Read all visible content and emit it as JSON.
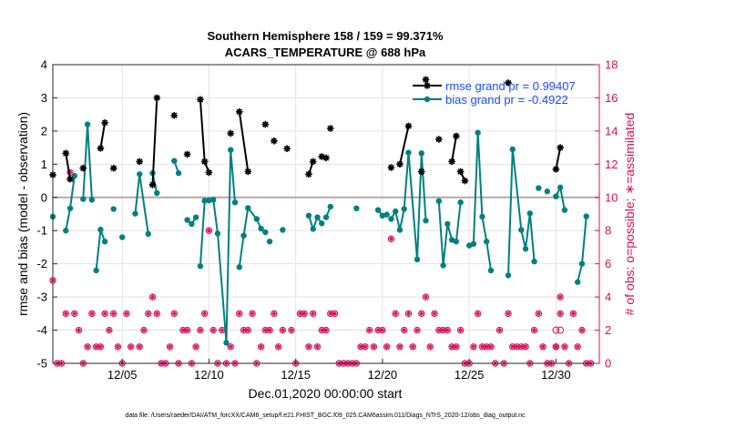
{
  "chart_data": {
    "type": "line",
    "title": "Southern Hemisphere 158 / 159 = 99.371%",
    "subtitle": "ACARS_TEMPERATURE @ 688 hPa",
    "xlabel": "Dec.01,2020 00:00:00 start",
    "ylabel": "rmse and bias (model - observation)",
    "y2label": "# of obs: o=possible; ∗=assimilated",
    "footnote": "data file: /Users/raeder/DAI/ATM_forcXX/CAM6_setup/f.e21.FHIST_BGC.f09_025.CAM6assim.011/Diags_NTrS_2020-12/obs_diag_output.nc",
    "xlim": [
      0.5,
      32.0
    ],
    "ylim": [
      -5,
      4
    ],
    "y2lim": [
      0,
      18
    ],
    "x_ticks": [
      4.5,
      9.5,
      14.5,
      19.5,
      24.5,
      29.5
    ],
    "x_tick_labels": [
      "12/05",
      "12/10",
      "12/15",
      "12/20",
      "12/25",
      "12/30"
    ],
    "y_ticks": [
      -5,
      -4,
      -3,
      -2,
      -1,
      0,
      1,
      2,
      3,
      4
    ],
    "y2_ticks": [
      0,
      2,
      4,
      6,
      8,
      10,
      12,
      14,
      16,
      18
    ],
    "grid": true,
    "legend_position": "top-right",
    "colors": {
      "rmse": "#000000",
      "bias": "#008080",
      "obs": "#d6105a",
      "zero_line": "#b9a5a9",
      "legend_text": "#1a4cff"
    },
    "series": [
      {
        "name": "rmse grand pr = 0.99407",
        "key": "rmse",
        "marker": "star",
        "segments": [
          [
            [
              0.5,
              0.68
            ]
          ],
          [
            [
              1.25,
              1.33
            ],
            [
              1.5,
              0.55
            ]
          ],
          [
            [
              2.25,
              0.88
            ]
          ],
          [
            [
              3.25,
              1.48
            ],
            [
              3.5,
              2.25
            ]
          ],
          [
            [
              4.0,
              0.88
            ]
          ],
          [
            [
              5.5,
              1.08
            ]
          ],
          [
            [
              6.25,
              0.38
            ],
            [
              6.5,
              3.0
            ]
          ],
          [
            [
              7.5,
              2.47
            ]
          ],
          [
            [
              8.25,
              1.3
            ]
          ],
          [
            [
              9.0,
              2.95
            ],
            [
              9.25,
              1.08
            ],
            [
              9.5,
              0.75
            ]
          ],
          [
            [
              10.75,
              1.93
            ]
          ],
          [
            [
              11.25,
              2.58
            ],
            [
              11.75,
              0.78
            ]
          ],
          [
            [
              12.75,
              2.2
            ]
          ],
          [
            [
              13.25,
              1.7
            ]
          ],
          [
            [
              14.0,
              1.47
            ]
          ],
          [
            [
              15.25,
              0.7
            ],
            [
              15.5,
              1.08
            ]
          ],
          [
            [
              16.0,
              1.23
            ],
            [
              16.25,
              1.19
            ]
          ],
          [
            [
              16.5,
              2.08
            ]
          ],
          [
            [
              20.0,
              0.9
            ]
          ],
          [
            [
              20.5,
              1.0
            ],
            [
              21.0,
              2.15
            ]
          ],
          [
            [
              21.75,
              0.78
            ]
          ],
          [
            [
              22.0,
              3.55
            ]
          ],
          [
            [
              22.75,
              1.75
            ]
          ],
          [
            [
              23.5,
              1.08
            ],
            [
              23.75,
              1.85
            ]
          ],
          [
            [
              24.0,
              0.78
            ],
            [
              24.25,
              0.5
            ]
          ],
          [
            [
              26.75,
              3.45
            ]
          ],
          [
            [
              29.5,
              0.85
            ],
            [
              29.75,
              1.5
            ]
          ]
        ]
      },
      {
        "name": "bias grand pr = -0.4922",
        "key": "bias",
        "marker": "circle",
        "segments": [
          [
            [
              0.5,
              -0.58
            ]
          ],
          [
            [
              1.25,
              -1.0
            ],
            [
              1.5,
              -0.33
            ],
            [
              1.75,
              0.65
            ]
          ],
          [
            [
              2.25,
              -0.05
            ],
            [
              2.5,
              2.2
            ],
            [
              2.75,
              -0.07
            ]
          ],
          [
            [
              3.0,
              -2.2
            ],
            [
              3.25,
              -0.97
            ],
            [
              3.5,
              -1.33
            ]
          ],
          [
            [
              4.0,
              -0.35
            ]
          ],
          [
            [
              4.5,
              -1.2
            ]
          ],
          [
            [
              5.25,
              -0.49
            ],
            [
              5.5,
              0.7
            ],
            [
              6.0,
              -1.1
            ]
          ],
          [
            [
              6.25,
              0.73
            ],
            [
              6.5,
              0.13
            ]
          ],
          [
            [
              7.5,
              1.1
            ],
            [
              7.75,
              0.73
            ]
          ],
          [
            [
              8.25,
              -0.68
            ],
            [
              8.5,
              -0.8
            ],
            [
              8.75,
              -0.6
            ]
          ],
          [
            [
              9.0,
              -2.07
            ],
            [
              9.25,
              -0.1
            ],
            [
              9.5,
              -0.09
            ],
            [
              9.75,
              -0.07
            ],
            [
              10.0,
              -1.09
            ],
            [
              10.5,
              -4.38
            ],
            [
              10.75,
              1.43
            ],
            [
              11.0,
              -0.15
            ]
          ],
          [
            [
              11.25,
              -2.1
            ],
            [
              11.5,
              -1.15
            ],
            [
              11.75,
              -0.32
            ],
            [
              12.25,
              -0.65
            ],
            [
              12.5,
              -0.94
            ],
            [
              12.75,
              -1.05
            ]
          ],
          [
            [
              13.0,
              -1.33
            ]
          ],
          [
            [
              13.75,
              -0.98
            ]
          ],
          [
            [
              15.25,
              -0.55
            ],
            [
              15.5,
              -0.95
            ],
            [
              15.75,
              -0.6
            ],
            [
              16.0,
              -0.78
            ]
          ],
          [
            [
              16.25,
              -0.6
            ],
            [
              16.5,
              -0.28
            ]
          ],
          [
            [
              18.0,
              -0.33
            ]
          ],
          [
            [
              19.25,
              -0.38
            ],
            [
              19.5,
              -0.55
            ],
            [
              19.75,
              -0.52
            ]
          ],
          [
            [
              20.0,
              -0.65
            ],
            [
              20.25,
              -0.42
            ],
            [
              20.5,
              -0.98
            ],
            [
              20.75,
              -0.35
            ],
            [
              21.0,
              1.35
            ],
            [
              21.5,
              -1.87
            ],
            [
              21.75,
              1.33
            ],
            [
              22.0,
              -0.7
            ]
          ],
          [
            [
              22.75,
              -0.11
            ],
            [
              23.0,
              -2.05
            ],
            [
              23.25,
              -0.8
            ],
            [
              23.5,
              -1.28
            ],
            [
              23.75,
              -1.33
            ],
            [
              24.0,
              -0.15
            ]
          ],
          [
            [
              24.5,
              -1.45
            ],
            [
              24.75,
              -1.4
            ],
            [
              25.0,
              1.95
            ],
            [
              25.25,
              -0.58
            ],
            [
              25.5,
              -1.33
            ],
            [
              25.75,
              -2.2
            ]
          ],
          [
            [
              26.75,
              -2.35
            ],
            [
              27.0,
              1.45
            ],
            [
              27.5,
              -0.98
            ],
            [
              27.75,
              -1.55
            ],
            [
              28.0,
              -0.48
            ],
            [
              28.25,
              -1.93
            ]
          ],
          [
            [
              28.5,
              0.28
            ]
          ],
          [
            [
              29.0,
              0.18
            ]
          ],
          [
            [
              29.5,
              0.03
            ],
            [
              29.75,
              0.3
            ],
            [
              30.0,
              -0.38
            ]
          ],
          [
            [
              30.75,
              -2.55
            ],
            [
              31.0,
              -2.0
            ],
            [
              31.25,
              -0.57
            ]
          ]
        ]
      }
    ],
    "obs_assimilated": [
      [
        0.5,
        5
      ],
      [
        0.75,
        0
      ],
      [
        1.0,
        0
      ],
      [
        1.25,
        3
      ],
      [
        1.75,
        3
      ],
      [
        2.0,
        2
      ],
      [
        2.25,
        0
      ],
      [
        2.5,
        1
      ],
      [
        2.75,
        3
      ],
      [
        3.0,
        1
      ],
      [
        3.25,
        1
      ],
      [
        3.5,
        3
      ],
      [
        3.75,
        2
      ],
      [
        4.0,
        3
      ],
      [
        4.25,
        1
      ],
      [
        4.5,
        0
      ],
      [
        4.75,
        3
      ],
      [
        5.0,
        1
      ],
      [
        5.5,
        1
      ],
      [
        5.75,
        2
      ],
      [
        6.0,
        3
      ],
      [
        6.25,
        4
      ],
      [
        6.5,
        3
      ],
      [
        6.75,
        0
      ],
      [
        7.0,
        0
      ],
      [
        7.25,
        1
      ],
      [
        7.5,
        3
      ],
      [
        7.75,
        0
      ],
      [
        8.0,
        2
      ],
      [
        8.25,
        2
      ],
      [
        8.5,
        0
      ],
      [
        8.75,
        1
      ],
      [
        9.0,
        2
      ],
      [
        9.25,
        3
      ],
      [
        9.5,
        8
      ],
      [
        9.75,
        2
      ],
      [
        10.0,
        0
      ],
      [
        10.25,
        2
      ],
      [
        10.5,
        0
      ],
      [
        10.75,
        1
      ],
      [
        11.0,
        0
      ],
      [
        11.25,
        3
      ],
      [
        11.5,
        2
      ],
      [
        11.75,
        2
      ],
      [
        12.0,
        3
      ],
      [
        12.25,
        0
      ],
      [
        12.5,
        1
      ],
      [
        12.75,
        2
      ],
      [
        13.0,
        2
      ],
      [
        13.25,
        3
      ],
      [
        13.5,
        1
      ],
      [
        13.75,
        2
      ],
      [
        14.25,
        2
      ],
      [
        14.5,
        0
      ],
      [
        14.75,
        3
      ],
      [
        15.0,
        3
      ],
      [
        15.25,
        1
      ],
      [
        15.5,
        3
      ],
      [
        15.75,
        1
      ],
      [
        16.0,
        2
      ],
      [
        16.25,
        2
      ],
      [
        16.5,
        3
      ],
      [
        16.75,
        3
      ],
      [
        17.0,
        0
      ],
      [
        17.25,
        0
      ],
      [
        17.5,
        0
      ],
      [
        17.75,
        0
      ],
      [
        18.0,
        0
      ],
      [
        18.25,
        1
      ],
      [
        18.5,
        1
      ],
      [
        18.75,
        2
      ],
      [
        19.0,
        1
      ],
      [
        19.25,
        2
      ],
      [
        19.5,
        2
      ],
      [
        19.75,
        1
      ],
      [
        20.0,
        7.5
      ],
      [
        20.25,
        3
      ],
      [
        20.5,
        1
      ],
      [
        20.75,
        2
      ],
      [
        21.0,
        3
      ],
      [
        21.25,
        1
      ],
      [
        21.5,
        2
      ],
      [
        21.75,
        3
      ],
      [
        22.0,
        4
      ],
      [
        22.25,
        1
      ],
      [
        22.5,
        3
      ],
      [
        22.75,
        2
      ],
      [
        23.0,
        2
      ],
      [
        23.25,
        2
      ],
      [
        23.5,
        1
      ],
      [
        23.75,
        1
      ],
      [
        24.0,
        2
      ],
      [
        24.25,
        0
      ],
      [
        24.5,
        0
      ],
      [
        24.75,
        1
      ],
      [
        25.0,
        3
      ],
      [
        25.25,
        1
      ],
      [
        25.5,
        1
      ],
      [
        25.75,
        1
      ],
      [
        26.0,
        0
      ],
      [
        26.25,
        2
      ],
      [
        26.5,
        0
      ],
      [
        26.75,
        3
      ],
      [
        27.0,
        1
      ],
      [
        27.25,
        1
      ],
      [
        27.5,
        1
      ],
      [
        27.75,
        1
      ],
      [
        28.0,
        0
      ],
      [
        28.25,
        2
      ],
      [
        28.5,
        3
      ],
      [
        28.75,
        1
      ],
      [
        29.0,
        0
      ],
      [
        29.25,
        0
      ],
      [
        29.5,
        1
      ],
      [
        29.75,
        4
      ],
      [
        30.0,
        1
      ],
      [
        30.25,
        0
      ],
      [
        30.5,
        3
      ],
      [
        30.75,
        1
      ],
      [
        31.0,
        2
      ],
      [
        31.25,
        0
      ],
      [
        31.5,
        0
      ]
    ],
    "obs_possible": [
      [
        29.5,
        2
      ],
      [
        29.75,
        2
      ]
    ],
    "obs_assimilated_extra": [
      [
        29.5,
        1
      ],
      [
        29.75,
        3
      ],
      [
        1.5,
        11.5
      ]
    ]
  }
}
